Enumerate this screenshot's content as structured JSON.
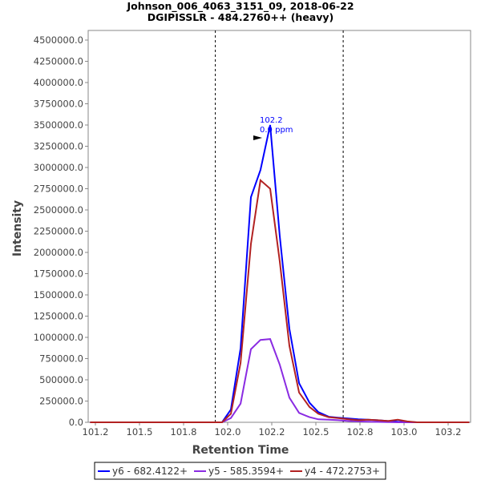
{
  "chart_data": {
    "type": "line",
    "title": "Johnson_006_4063_3151_09, 2018-06-22",
    "subtitle": "DGIPISSLR - 484.2760++ (heavy)",
    "xlabel": "Retention Time",
    "ylabel": "Intensity",
    "xlim": [
      101.21,
      103.377
    ],
    "ylim": [
      0,
      4600000
    ],
    "x_ticks": [
      101.25,
      101.5,
      101.75,
      102.0,
      102.25,
      102.5,
      102.75,
      103.0,
      103.25
    ],
    "x_tick_labels": [
      "101.2",
      "101.5",
      "101.8",
      "102.0",
      "102.2",
      "102.5",
      "102.8",
      "103.0",
      "103.2"
    ],
    "y_ticks": [
      0,
      250000,
      500000,
      750000,
      1000000,
      1250000,
      1500000,
      1750000,
      2000000,
      2250000,
      2500000,
      2750000,
      3000000,
      3250000,
      3500000,
      3750000,
      4000000,
      4250000,
      4500000
    ],
    "y_tick_labels": [
      "0.0",
      "250000.0",
      "500000.0",
      "750000.0",
      "1000000.0",
      "1250000.0",
      "1500000.0",
      "1750000.0",
      "2000000.0",
      "2250000.0",
      "2500000.0",
      "2750000.0",
      "3000000.0",
      "3250000.0",
      "3500000.0",
      "3750000.0",
      "4000000.0",
      "4250000.0",
      "4500000.0"
    ],
    "grid": false,
    "legend_position": "bottom",
    "boundaries": [
      101.93,
      102.655
    ],
    "annotation": {
      "x": 102.241,
      "y": 3500000,
      "line1": "102.2",
      "line2": "0.0 ppm"
    },
    "x": [
      101.22,
      101.968,
      102.018,
      102.073,
      102.132,
      102.186,
      102.241,
      102.295,
      102.35,
      102.405,
      102.464,
      102.514,
      102.573,
      102.627,
      102.686,
      102.741,
      102.795,
      102.85,
      102.909,
      102.964,
      103.018,
      103.073,
      103.37
    ],
    "series": [
      {
        "name": "y6 - 682.4122+",
        "color": "#0000ff",
        "values": [
          0,
          0,
          150000,
          870000,
          2650000,
          2970000,
          3500000,
          2200000,
          1100000,
          460000,
          230000,
          120000,
          65000,
          55000,
          45000,
          35000,
          30000,
          25000,
          15000,
          8000,
          5000,
          0,
          0
        ]
      },
      {
        "name": "y5 - 585.3594+",
        "color": "#8a2be2",
        "values": [
          0,
          0,
          50000,
          220000,
          860000,
          970000,
          980000,
          680000,
          290000,
          110000,
          60000,
          35000,
          30000,
          25000,
          15000,
          10000,
          8000,
          5000,
          3000,
          0,
          0,
          0,
          0
        ]
      },
      {
        "name": "y4 - 472.2753+",
        "color": "#b22222",
        "values": [
          0,
          0,
          100000,
          700000,
          2100000,
          2850000,
          2750000,
          1900000,
          900000,
          350000,
          180000,
          100000,
          60000,
          50000,
          35000,
          25000,
          30000,
          25000,
          15000,
          30000,
          10000,
          0,
          0
        ]
      }
    ]
  }
}
